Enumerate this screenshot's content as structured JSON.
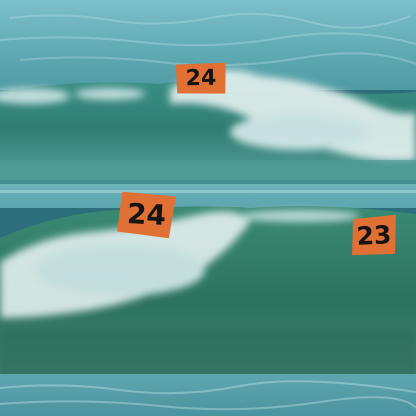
{
  "photo": {
    "colors": {
      "sky_water": "#6fb3bf",
      "deep_water": "#2f7d80",
      "wave_face": "#3f8f84",
      "foam": "#e9f3f2",
      "tag_fill": "#e07033",
      "tag_text": "#141414"
    }
  },
  "tags": [
    {
      "text": "24"
    },
    {
      "text": "24"
    },
    {
      "text": "23"
    }
  ]
}
